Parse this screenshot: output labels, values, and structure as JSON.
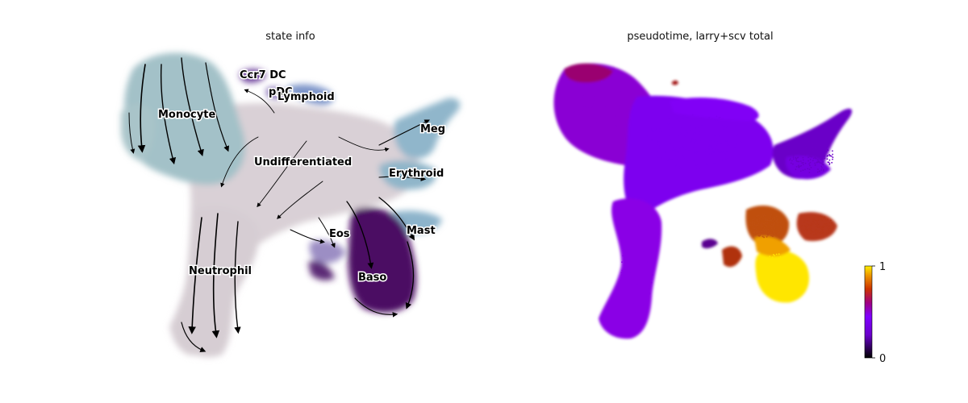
{
  "chart_data": [
    {
      "type": "scatter",
      "title": "state info",
      "xlabel": "",
      "ylabel": "",
      "grid": false,
      "overlay": "velocity streamlines",
      "labels_on_data": [
        "Ccr7 DC",
        "pDC",
        "Lymphoid",
        "Monocyte",
        "Meg",
        "Undifferentiated",
        "Erythroid",
        "Mast",
        "Eos",
        "Neutrophil",
        "Baso"
      ],
      "colors": {
        "Undifferentiated": "#d9d0d6",
        "Monocyte": "#a3c1c8",
        "Neutrophil": "#d9d0d6",
        "Meg": "#90b6cb",
        "Erythroid": "#8fb5c9",
        "Mast": "#8cb3cb",
        "Lymphoid": "#7e95c9",
        "Ccr7 DC": "#6a3d9a",
        "pDC": "#8067b3",
        "Eos": "#9c8ec4",
        "Baso": "#4b0f63"
      }
    },
    {
      "type": "scatter",
      "title": "pseudotime, larry+scv total",
      "xlabel": "",
      "ylabel": "",
      "grid": false,
      "colormap": "gnuplot",
      "colorbar": {
        "min": 0,
        "max": 1,
        "ticks": [
          "0",
          "1"
        ]
      }
    }
  ]
}
